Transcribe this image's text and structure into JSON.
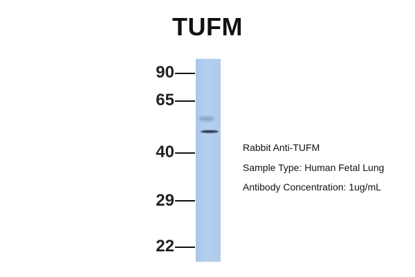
{
  "title": "TUFM",
  "markers": [
    "90",
    "65",
    "40",
    "29",
    "22"
  ],
  "lane_color": "#b3ceee",
  "info": {
    "antibody": "Rabbit Anti-TUFM",
    "sample": "Sample Type: Human Fetal Lung",
    "concentration": "Antibody Concentration: 1ug/mL"
  }
}
